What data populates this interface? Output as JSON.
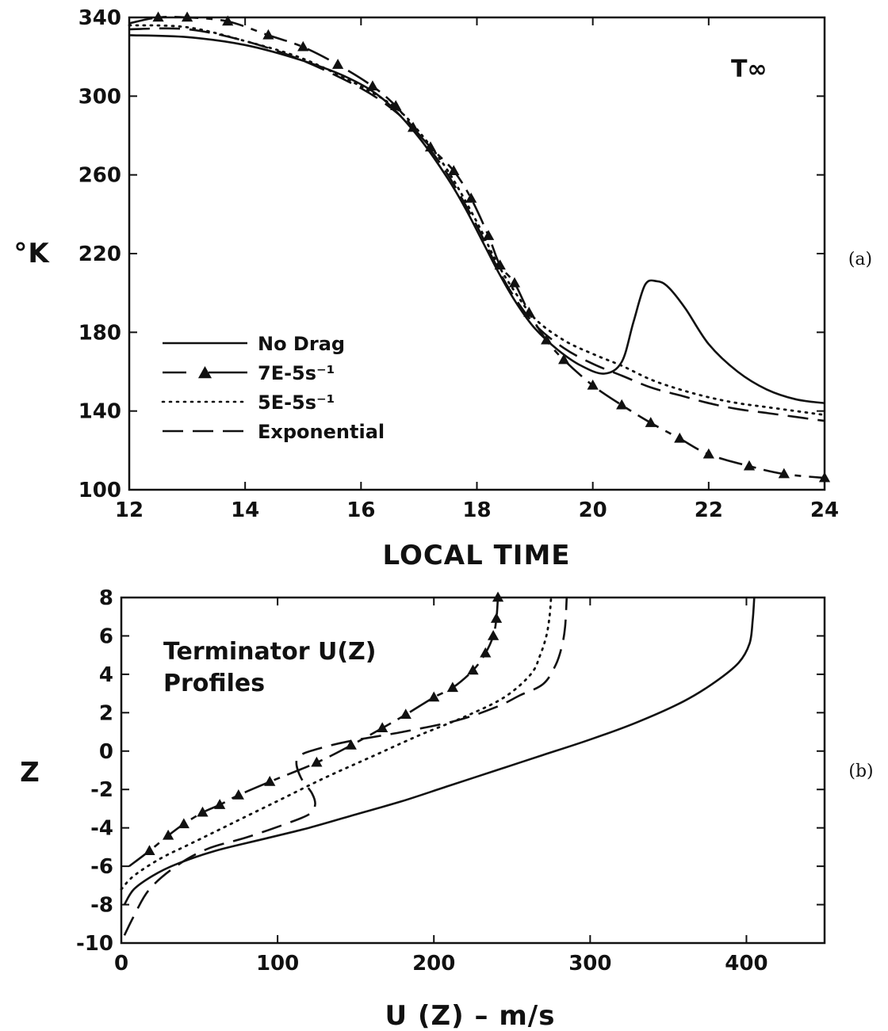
{
  "chart_data": [
    {
      "type": "line",
      "panel_label": "(a)",
      "annotation": "T∞",
      "xlabel": "LOCAL TIME",
      "ylabel": "°K",
      "xlim": [
        12,
        24
      ],
      "ylim": [
        100,
        340
      ],
      "xticks": [
        12,
        14,
        16,
        18,
        20,
        22,
        24
      ],
      "yticks": [
        100,
        140,
        180,
        220,
        260,
        300,
        340
      ],
      "legend_position": "lower-left",
      "series": [
        {
          "name": "No Drag",
          "style": "solid",
          "x": [
            12,
            13,
            14,
            15,
            15.8,
            16.4,
            17,
            17.5,
            17.8,
            18.1,
            18.4,
            18.7,
            19,
            19.4,
            19.8,
            20.2,
            20.5,
            20.7,
            20.9,
            21.1,
            21.3,
            21.6,
            22,
            22.5,
            23,
            23.5,
            24
          ],
          "y": [
            331,
            330,
            326,
            318,
            309,
            298,
            279,
            258,
            243,
            226,
            209,
            194,
            182,
            171,
            163,
            159,
            165,
            185,
            204,
            206,
            203,
            192,
            174,
            160,
            151,
            146,
            144
          ]
        },
        {
          "name": "7E-5s⁻¹",
          "style": "long-dash-triangle",
          "x": [
            12,
            12.5,
            13,
            13.7,
            14.4,
            15,
            15.6,
            16.2,
            16.6,
            16.9,
            17.2,
            17.6,
            17.9,
            18.2,
            18.4,
            18.65,
            18.9,
            19.2,
            19.5,
            20,
            20.5,
            21,
            21.5,
            22,
            22.7,
            23.3,
            24
          ],
          "y": [
            337,
            340,
            340,
            338,
            331,
            325,
            316,
            305,
            295,
            284,
            274,
            262,
            248,
            229,
            214,
            205,
            190,
            176,
            166,
            153,
            143,
            134,
            126,
            118,
            112,
            108,
            106
          ]
        },
        {
          "name": "5E-5s⁻¹",
          "style": "dotted",
          "x": [
            12,
            13,
            14,
            15,
            16,
            16.6,
            17,
            17.5,
            18,
            18.3,
            18.6,
            19,
            19.5,
            20,
            20.5,
            21,
            21.5,
            22,
            22.5,
            23,
            23.5,
            24
          ],
          "y": [
            336,
            335,
            328,
            319,
            305,
            294,
            282,
            262,
            236,
            218,
            203,
            187,
            176,
            169,
            163,
            156,
            151,
            147,
            144,
            142,
            140,
            138
          ]
        },
        {
          "name": "Exponential",
          "style": "dashed",
          "x": [
            12,
            13,
            14,
            15,
            16,
            16.6,
            17,
            17.5,
            18,
            18.3,
            18.6,
            19,
            19.5,
            20,
            20.5,
            21,
            21.5,
            22,
            22.5,
            23,
            23.5,
            24
          ],
          "y": [
            334,
            334,
            328,
            318,
            304,
            292,
            280,
            260,
            234,
            216,
            200,
            184,
            172,
            164,
            158,
            152,
            148,
            144,
            141,
            139,
            137,
            135
          ]
        }
      ]
    },
    {
      "type": "line",
      "panel_label": "(b)",
      "annotation": [
        "Terminator U(Z)",
        "Profiles"
      ],
      "xlabel": "U (Z) – m/s",
      "ylabel": "Z",
      "xlim": [
        0,
        450
      ],
      "ylim": [
        -10,
        8
      ],
      "xticks": [
        0,
        100,
        200,
        300,
        400
      ],
      "yticks": [
        -10,
        -8,
        -6,
        -4,
        -2,
        0,
        2,
        4,
        6,
        8
      ],
      "series": [
        {
          "name": "No Drag",
          "style": "solid",
          "x": [
            2,
            8,
            20,
            35,
            60,
            90,
            120,
            150,
            180,
            210,
            240,
            270,
            300,
            330,
            360,
            380,
            395,
            402,
            404,
            405
          ],
          "y": [
            -8,
            -7.2,
            -6.5,
            -5.9,
            -5.2,
            -4.6,
            -4.0,
            -3.3,
            -2.6,
            -1.8,
            -1.0,
            -0.2,
            0.6,
            1.5,
            2.6,
            3.6,
            4.6,
            5.6,
            6.8,
            8
          ]
        },
        {
          "name": "7E-5s⁻¹",
          "style": "long-dash-triangle",
          "x": [
            5,
            18,
            30,
            40,
            52,
            63,
            75,
            95,
            125,
            147,
            167,
            182,
            200,
            212,
            225,
            233,
            238,
            240,
            241
          ],
          "y": [
            -6,
            -5.2,
            -4.4,
            -3.8,
            -3.2,
            -2.8,
            -2.3,
            -1.6,
            -0.6,
            0.3,
            1.2,
            1.9,
            2.8,
            3.3,
            4.2,
            5.1,
            6.0,
            6.9,
            8
          ]
        },
        {
          "name": "5E-5s⁻¹",
          "style": "dotted",
          "x": [
            0,
            8,
            25,
            45,
            70,
            100,
            130,
            160,
            190,
            220,
            245,
            262,
            268,
            272,
            274,
            275
          ],
          "y": [
            -7.2,
            -6.5,
            -5.6,
            -4.8,
            -3.8,
            -2.6,
            -1.4,
            -0.3,
            0.8,
            1.8,
            2.8,
            4.0,
            5.0,
            6.0,
            7.0,
            8
          ]
        },
        {
          "name": "Exponential",
          "style": "dashed",
          "x": [
            2,
            8,
            18,
            35,
            55,
            80,
            105,
            120,
            124,
            122,
            115,
            112,
            115,
            125,
            145,
            180,
            215,
            240,
            255,
            270,
            278,
            282,
            284,
            285
          ],
          "y": [
            -9.6,
            -8.6,
            -7.2,
            -6.0,
            -5.1,
            -4.5,
            -3.8,
            -3.3,
            -2.8,
            -2.2,
            -1.4,
            -0.6,
            -0.2,
            0.1,
            0.5,
            1.0,
            1.6,
            2.3,
            2.9,
            3.5,
            4.5,
            5.5,
            6.5,
            8
          ]
        }
      ]
    }
  ]
}
